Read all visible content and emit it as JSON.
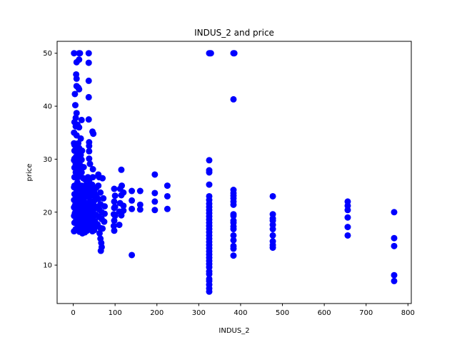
{
  "chart_data": {
    "type": "scatter",
    "title": "INDUS_2 and price",
    "xlabel": "INDUS_2",
    "ylabel": "price",
    "xlim": [
      -38.5,
      808
    ],
    "ylim": [
      2.75,
      52.25
    ],
    "x_ticks": [
      0,
      100,
      200,
      300,
      400,
      500,
      600,
      700,
      800
    ],
    "y_ticks": [
      10,
      20,
      30,
      40,
      50
    ],
    "grid": false,
    "marker_color": "#0000ff",
    "points": [
      [
        2,
        50
      ],
      [
        14,
        50
      ],
      [
        16,
        50
      ],
      [
        37,
        50
      ],
      [
        8,
        48.3
      ],
      [
        14,
        48.8
      ],
      [
        37,
        48.2
      ],
      [
        7,
        46
      ],
      [
        8,
        45.2
      ],
      [
        37,
        44.8
      ],
      [
        8,
        43.8
      ],
      [
        12,
        43.5
      ],
      [
        14,
        43.2
      ],
      [
        4,
        42.3
      ],
      [
        37,
        41.7
      ],
      [
        5,
        40.2
      ],
      [
        8,
        38.7
      ],
      [
        6,
        37.8
      ],
      [
        20,
        37.4
      ],
      [
        37,
        37.5
      ],
      [
        3,
        37
      ],
      [
        10,
        36.5
      ],
      [
        6,
        36.2
      ],
      [
        14,
        36
      ],
      [
        46,
        35.2
      ],
      [
        48,
        34.8
      ],
      [
        2,
        35
      ],
      [
        8,
        34.5
      ],
      [
        18,
        33.9
      ],
      [
        38,
        33.2
      ],
      [
        2,
        33
      ],
      [
        12,
        33
      ],
      [
        3,
        32.7
      ],
      [
        38,
        32.5
      ],
      [
        7,
        32.3
      ],
      [
        14,
        32.1
      ],
      [
        3,
        31.6
      ],
      [
        10,
        31.6
      ],
      [
        21,
        31.6
      ],
      [
        38,
        31.5
      ],
      [
        14,
        31.1
      ],
      [
        18,
        30.8
      ],
      [
        7,
        30.5
      ],
      [
        3,
        30.1
      ],
      [
        12,
        30.3
      ],
      [
        38,
        30.1
      ],
      [
        2,
        29.8
      ],
      [
        20,
        29.9
      ],
      [
        10,
        29.6
      ],
      [
        15,
        29.4
      ],
      [
        6,
        29.1
      ],
      [
        40,
        29.1
      ],
      [
        18,
        28.7
      ],
      [
        3,
        28.4
      ],
      [
        25,
        28.5
      ],
      [
        10,
        28.2
      ],
      [
        13,
        28
      ],
      [
        47,
        28.1
      ],
      [
        115,
        28
      ],
      [
        6,
        27.5
      ],
      [
        20,
        27.5
      ],
      [
        16,
        27.1
      ],
      [
        60,
        27.1
      ],
      [
        195,
        27.1
      ],
      [
        35,
        26.6
      ],
      [
        3,
        26.6
      ],
      [
        12,
        26.6
      ],
      [
        47,
        26.6
      ],
      [
        62,
        26.6
      ],
      [
        70,
        26.4
      ],
      [
        24,
        26.4
      ],
      [
        28,
        26.2
      ],
      [
        38,
        26
      ],
      [
        10,
        25.6
      ],
      [
        20,
        25
      ],
      [
        30,
        25.1
      ],
      [
        3,
        25
      ],
      [
        15,
        25
      ],
      [
        40,
        25
      ],
      [
        45,
        25.2
      ],
      [
        60,
        25
      ],
      [
        116,
        25
      ],
      [
        225,
        25
      ],
      [
        2,
        24.7
      ],
      [
        10,
        24.6
      ],
      [
        25,
        24.5
      ],
      [
        35,
        24.4
      ],
      [
        47,
        24.7
      ],
      [
        55,
        24.6
      ],
      [
        98,
        24.4
      ],
      [
        112,
        24.4
      ],
      [
        140,
        24
      ],
      [
        160,
        24
      ],
      [
        8,
        24.2
      ],
      [
        20,
        24.1
      ],
      [
        30,
        24
      ],
      [
        40,
        23.9
      ],
      [
        50,
        23.8
      ],
      [
        65,
        23.7
      ],
      [
        120,
        23.7
      ],
      [
        195,
        23.6
      ],
      [
        3,
        23.4
      ],
      [
        12,
        23.2
      ],
      [
        22,
        23.4
      ],
      [
        35,
        23.1
      ],
      [
        45,
        23.2
      ],
      [
        55,
        23.1
      ],
      [
        100,
        23.1
      ],
      [
        115,
        23.2
      ],
      [
        225,
        23
      ],
      [
        8,
        22.8
      ],
      [
        18,
        22.6
      ],
      [
        28,
        22.9
      ],
      [
        38,
        22.8
      ],
      [
        60,
        22.5
      ],
      [
        72,
        22.6
      ],
      [
        2,
        22.3
      ],
      [
        14,
        22.2
      ],
      [
        24,
        22.2
      ],
      [
        42,
        22
      ],
      [
        52,
        22.3
      ],
      [
        98,
        22
      ],
      [
        140,
        22.2
      ],
      [
        195,
        22
      ],
      [
        6,
        21.7
      ],
      [
        18,
        21.9
      ],
      [
        30,
        21.8
      ],
      [
        48,
        21.6
      ],
      [
        65,
        21.5
      ],
      [
        112,
        21.7
      ],
      [
        160,
        21.4
      ],
      [
        4,
        21.2
      ],
      [
        12,
        21.1
      ],
      [
        22,
        21.2
      ],
      [
        35,
        21.4
      ],
      [
        58,
        21
      ],
      [
        75,
        21.1
      ],
      [
        100,
        21
      ],
      [
        120,
        21.2
      ],
      [
        2,
        20.9
      ],
      [
        10,
        20.6
      ],
      [
        20,
        20.9
      ],
      [
        30,
        20.5
      ],
      [
        40,
        20.7
      ],
      [
        50,
        20.6
      ],
      [
        62,
        20.5
      ],
      [
        98,
        20.8
      ],
      [
        140,
        20.6
      ],
      [
        160,
        20.5
      ],
      [
        195,
        20.4
      ],
      [
        225,
        20.6
      ],
      [
        6,
        20.2
      ],
      [
        16,
        20.1
      ],
      [
        26,
        20.3
      ],
      [
        36,
        20.2
      ],
      [
        46,
        20.1
      ],
      [
        68,
        20
      ],
      [
        110,
        20.1
      ],
      [
        120,
        20.3
      ],
      [
        4,
        19.8
      ],
      [
        14,
        19.7
      ],
      [
        24,
        19.6
      ],
      [
        34,
        19.9
      ],
      [
        54,
        19.5
      ],
      [
        75,
        19.7
      ],
      [
        97,
        19.6
      ],
      [
        2,
        19.3
      ],
      [
        12,
        19.4
      ],
      [
        22,
        19.1
      ],
      [
        32,
        19.2
      ],
      [
        42,
        19.4
      ],
      [
        62,
        19.1
      ],
      [
        100,
        19.3
      ],
      [
        115,
        19.4
      ],
      [
        8,
        18.9
      ],
      [
        18,
        18.7
      ],
      [
        28,
        18.8
      ],
      [
        38,
        18.5
      ],
      [
        48,
        18.6
      ],
      [
        68,
        18.7
      ],
      [
        6,
        18.3
      ],
      [
        16,
        18.2
      ],
      [
        26,
        18.4
      ],
      [
        36,
        18.1
      ],
      [
        52,
        18.3
      ],
      [
        74,
        18.2
      ],
      [
        98,
        18.4
      ],
      [
        3,
        18
      ],
      [
        20,
        17.8
      ],
      [
        30,
        17.6
      ],
      [
        44,
        17.9
      ],
      [
        58,
        17.7
      ],
      [
        110,
        17.6
      ],
      [
        12,
        17.4
      ],
      [
        24,
        17.1
      ],
      [
        40,
        17.2
      ],
      [
        54,
        17.3
      ],
      [
        65,
        17
      ],
      [
        97,
        17.4
      ],
      [
        6,
        16.8
      ],
      [
        18,
        16.7
      ],
      [
        33,
        16.5
      ],
      [
        50,
        16.6
      ],
      [
        70,
        16.9
      ],
      [
        2,
        16.4
      ],
      [
        15,
        16.3
      ],
      [
        28,
        16.2
      ],
      [
        46,
        16.4
      ],
      [
        63,
        16
      ],
      [
        22,
        16
      ],
      [
        98,
        16.5
      ],
      [
        65,
        15
      ],
      [
        67,
        14.2
      ],
      [
        68,
        13.4
      ],
      [
        66,
        12.7
      ],
      [
        140,
        11.9
      ],
      [
        325,
        50
      ],
      [
        327,
        50
      ],
      [
        329,
        50
      ],
      [
        383,
        50
      ],
      [
        385,
        50
      ],
      [
        383,
        41.3
      ],
      [
        325,
        29.8
      ],
      [
        325,
        27.9
      ],
      [
        325,
        27.5
      ],
      [
        325,
        25.2
      ],
      [
        325,
        23
      ],
      [
        325,
        22.3
      ],
      [
        325,
        21.6
      ],
      [
        325,
        21
      ],
      [
        325,
        20.4
      ],
      [
        325,
        19.8
      ],
      [
        325,
        19.2
      ],
      [
        325,
        18.6
      ],
      [
        325,
        18
      ],
      [
        325,
        17.4
      ],
      [
        325,
        16.8
      ],
      [
        325,
        16.2
      ],
      [
        325,
        15.6
      ],
      [
        325,
        15
      ],
      [
        325,
        14.4
      ],
      [
        325,
        13.8
      ],
      [
        325,
        13.2
      ],
      [
        325,
        12.6
      ],
      [
        325,
        12
      ],
      [
        325,
        11.4
      ],
      [
        325,
        10.8
      ],
      [
        325,
        10.2
      ],
      [
        325,
        9.6
      ],
      [
        325,
        8.8
      ],
      [
        325,
        8.3
      ],
      [
        325,
        7.4
      ],
      [
        325,
        7
      ],
      [
        325,
        6.3
      ],
      [
        325,
        5.6
      ],
      [
        325,
        5
      ],
      [
        383,
        24.2
      ],
      [
        383,
        23.6
      ],
      [
        383,
        23.1
      ],
      [
        383,
        22.6
      ],
      [
        383,
        22
      ],
      [
        383,
        21.4
      ],
      [
        383,
        19.6
      ],
      [
        383,
        19.3
      ],
      [
        383,
        18.4
      ],
      [
        383,
        18
      ],
      [
        383,
        17.3
      ],
      [
        383,
        16.8
      ],
      [
        383,
        15.6
      ],
      [
        383,
        14.7
      ],
      [
        383,
        13.6
      ],
      [
        383,
        13.1
      ],
      [
        383,
        11.8
      ],
      [
        477,
        23
      ],
      [
        477,
        19.6
      ],
      [
        477,
        18.8
      ],
      [
        477,
        18.4
      ],
      [
        477,
        17.6
      ],
      [
        477,
        16.8
      ],
      [
        477,
        15.6
      ],
      [
        477,
        14.5
      ],
      [
        477,
        13.8
      ],
      [
        477,
        13.3
      ],
      [
        656,
        22
      ],
      [
        656,
        21.2
      ],
      [
        656,
        20.4
      ],
      [
        656,
        19
      ],
      [
        656,
        17.2
      ],
      [
        656,
        15.6
      ],
      [
        767,
        20
      ],
      [
        767,
        15.1
      ],
      [
        767,
        13.6
      ],
      [
        767,
        8.1
      ],
      [
        767,
        7
      ]
    ]
  }
}
